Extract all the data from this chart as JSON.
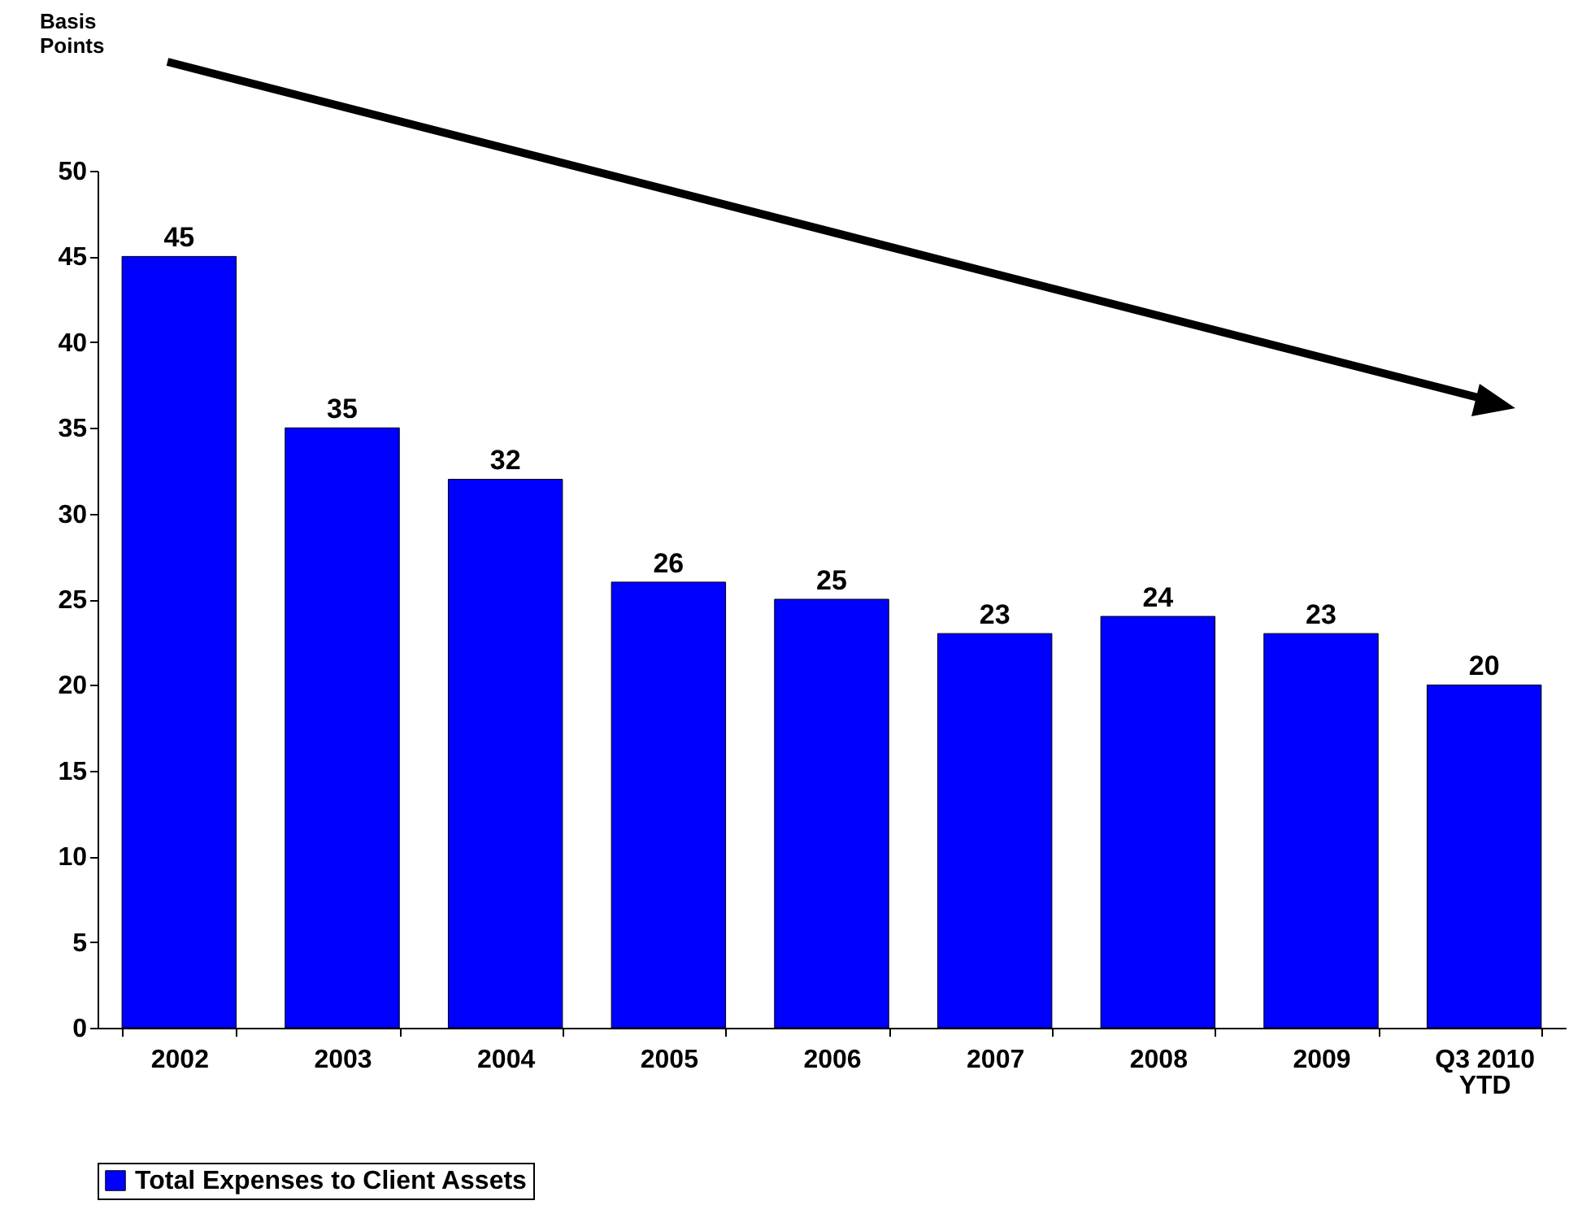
{
  "chart_data": {
    "type": "bar",
    "ylabel": "Basis Points",
    "categories": [
      "2002",
      "2003",
      "2004",
      "2005",
      "2006",
      "2007",
      "2008",
      "2009",
      "Q3 2010 YTD"
    ],
    "series": [
      {
        "name": "Total Expenses to Client Assets",
        "color": "#0000ff",
        "values": [
          45,
          35,
          32,
          26,
          25,
          23,
          24,
          23,
          20
        ]
      }
    ],
    "ylim": [
      0,
      50
    ],
    "yticks": [
      0,
      5,
      10,
      15,
      20,
      25,
      30,
      35,
      40,
      45,
      50
    ],
    "grid": false,
    "data_labels": true,
    "legend": "bottom"
  }
}
